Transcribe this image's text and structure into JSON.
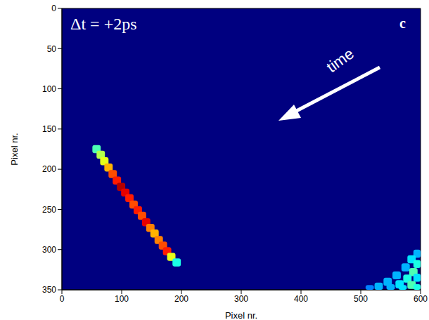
{
  "chart_data": {
    "type": "heatmap",
    "title": "Δt = +2ps",
    "panel": "c",
    "annotations": [
      "time"
    ],
    "x_label": "Pixel nr.",
    "y_label": "Pixel nr.",
    "xlim": [
      0,
      600
    ],
    "ylim": [
      0,
      350
    ],
    "xticks": [
      0,
      100,
      200,
      300,
      400,
      500,
      600
    ],
    "yticks": [
      0,
      50,
      100,
      150,
      200,
      250,
      300,
      350
    ],
    "grid": false,
    "clim": [
      0,
      1
    ],
    "cell_size": [
      14,
      10
    ],
    "cells": {
      "x": [
        58,
        65,
        71,
        78,
        85,
        92,
        99,
        106,
        113,
        120,
        127,
        134,
        141,
        148,
        155,
        162,
        169,
        176,
        183,
        192,
        595,
        585,
        595,
        575,
        588,
        560,
        578,
        595,
        545,
        565,
        585,
        530,
        550,
        570,
        595,
        515
      ],
      "y": [
        175,
        182,
        190,
        198,
        206,
        214,
        222,
        229,
        236,
        244,
        251,
        258,
        266,
        273,
        280,
        288,
        295,
        302,
        309,
        316,
        305,
        312,
        318,
        322,
        328,
        332,
        336,
        335,
        340,
        343,
        344,
        346,
        348,
        349,
        348,
        349
      ],
      "values": [
        0.45,
        0.55,
        0.6,
        0.7,
        0.8,
        0.85,
        0.95,
        0.9,
        0.85,
        0.8,
        0.85,
        0.8,
        0.9,
        0.75,
        0.7,
        0.75,
        0.8,
        0.85,
        0.6,
        0.4,
        0.3,
        0.35,
        0.4,
        0.3,
        0.45,
        0.3,
        0.4,
        0.35,
        0.3,
        0.35,
        0.45,
        0.3,
        0.3,
        0.35,
        0.4,
        0.25
      ]
    }
  }
}
